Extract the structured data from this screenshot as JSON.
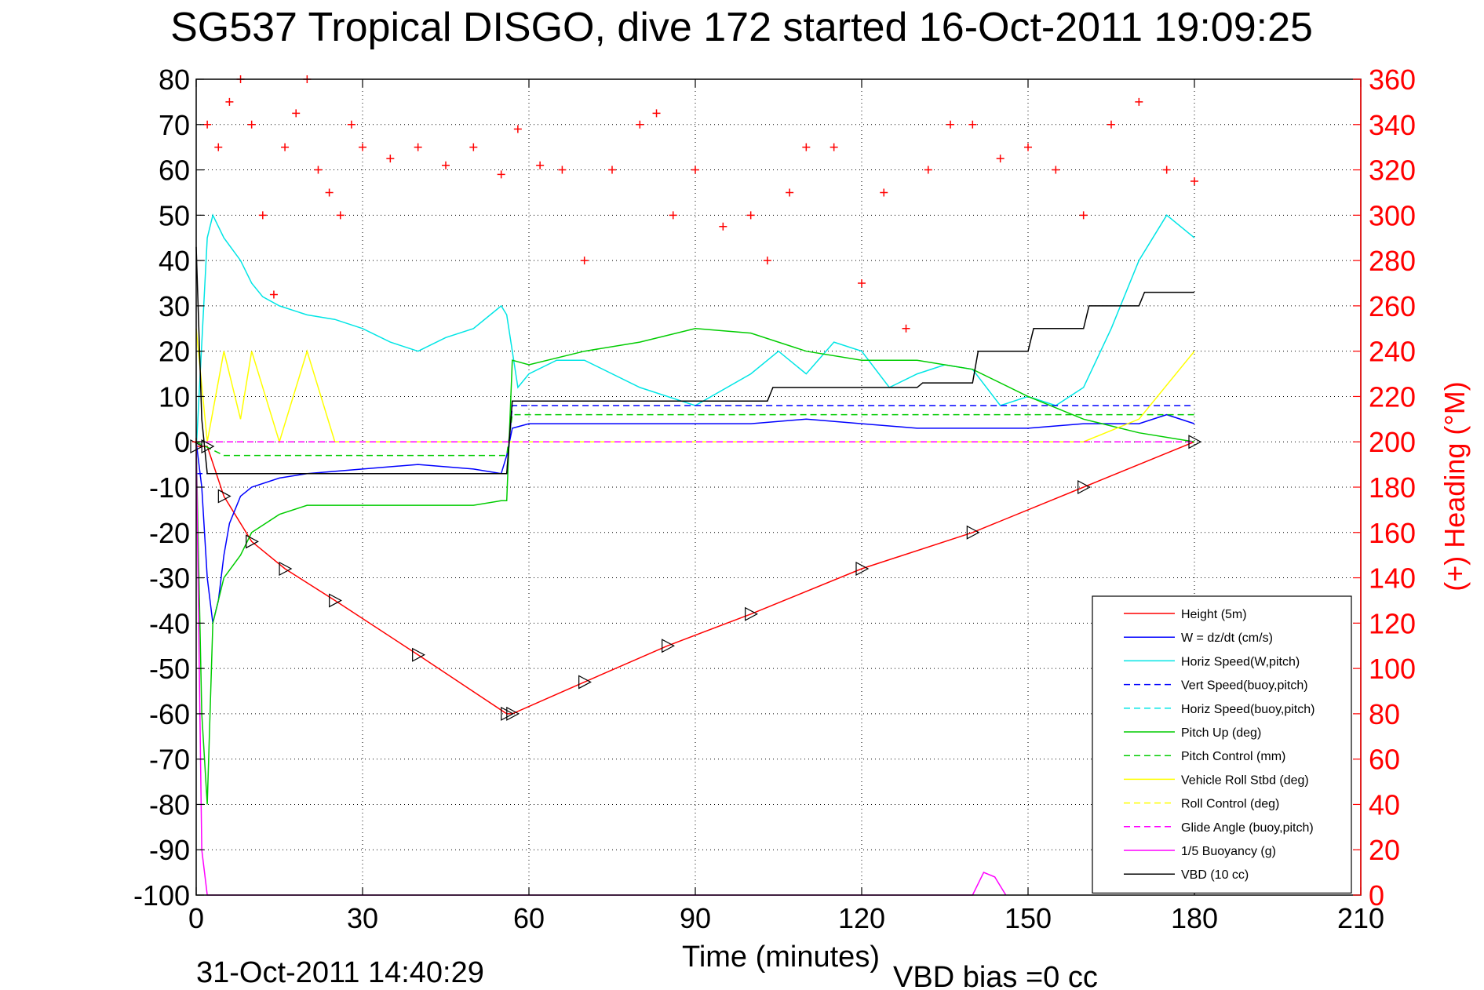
{
  "chart_data": {
    "type": "line",
    "title": "SG537 Tropical DISGO, dive 172 started 16-Oct-2011 19:09:25",
    "xlabel": "Time (minutes)",
    "ylabel": "",
    "y2label": "(+) Heading (°M)",
    "footer_left": "31-Oct-2011 14:40:29",
    "footer_right": "VBD bias =0 cc",
    "xlim": [
      0,
      210
    ],
    "ylim": [
      -100,
      80
    ],
    "y2lim": [
      0,
      360
    ],
    "grid": true,
    "legend_position": "bottom-right",
    "x_ticks": [
      "0",
      "30",
      "60",
      "90",
      "120",
      "150",
      "180",
      "210"
    ],
    "y_ticks": [
      "80",
      "70",
      "60",
      "50",
      "40",
      "30",
      "20",
      "10",
      "0",
      "-10",
      "-20",
      "-30",
      "-40",
      "-50",
      "-60",
      "-70",
      "-80",
      "-90",
      "-100"
    ],
    "y2_ticks": [
      "360",
      "340",
      "320",
      "300",
      "280",
      "260",
      "240",
      "220",
      "200",
      "180",
      "160",
      "140",
      "120",
      "100",
      "80",
      "60",
      "40",
      "20",
      "0"
    ],
    "series": [
      {
        "name": "Height (5m)",
        "color": "#ff0000",
        "style": "solid",
        "x": [
          0,
          2,
          5,
          10,
          16,
          25,
          40,
          56,
          57,
          70,
          85,
          100,
          120,
          140,
          160,
          180
        ],
        "y": [
          -1,
          -1,
          -12,
          -22,
          -28,
          -35,
          -47,
          -60,
          -60,
          -53,
          -45,
          -38,
          -28,
          -20,
          -10,
          0
        ]
      },
      {
        "name": "W = dz/dt (cm/s)",
        "color": "#0000ff",
        "style": "solid",
        "x": [
          0,
          1,
          2,
          3,
          4,
          5,
          6,
          8,
          10,
          15,
          20,
          30,
          40,
          50,
          55,
          56,
          57,
          60,
          70,
          80,
          90,
          100,
          110,
          120,
          130,
          140,
          150,
          160,
          170,
          175,
          180
        ],
        "y": [
          0,
          -10,
          -30,
          -40,
          -35,
          -25,
          -18,
          -12,
          -10,
          -8,
          -7,
          -6,
          -5,
          -6,
          -7,
          -3,
          3,
          4,
          4,
          4,
          4,
          4,
          5,
          4,
          3,
          3,
          3,
          4,
          4,
          6,
          4
        ]
      },
      {
        "name": "Horiz Speed(W,pitch)",
        "color": "#00e5e5",
        "style": "solid",
        "x": [
          0,
          2,
          3,
          5,
          8,
          10,
          12,
          15,
          20,
          25,
          30,
          35,
          40,
          45,
          50,
          55,
          56,
          58,
          60,
          65,
          70,
          80,
          90,
          100,
          105,
          110,
          115,
          120,
          125,
          130,
          135,
          140,
          145,
          150,
          155,
          160,
          165,
          170,
          175,
          180
        ],
        "y": [
          -2,
          45,
          50,
          45,
          40,
          35,
          32,
          30,
          28,
          27,
          25,
          22,
          20,
          23,
          25,
          30,
          28,
          12,
          15,
          18,
          18,
          12,
          8,
          15,
          20,
          15,
          22,
          20,
          12,
          15,
          17,
          16,
          8,
          10,
          8,
          12,
          25,
          40,
          50,
          45
        ]
      },
      {
        "name": "Vert Speed(buoy,pitch)",
        "color": "#0000ff",
        "style": "dashed",
        "x": [
          0,
          56,
          57,
          180
        ],
        "y": [
          -7,
          -7,
          8,
          8
        ]
      },
      {
        "name": "Horiz Speed(buoy,pitch)",
        "color": "#00e5e5",
        "style": "dashed",
        "x": [
          0,
          180
        ],
        "y": [
          0,
          0
        ]
      },
      {
        "name": "Pitch Up (deg)",
        "color": "#00cc00",
        "style": "solid",
        "x": [
          0,
          1,
          2,
          3,
          5,
          8,
          10,
          15,
          20,
          30,
          40,
          50,
          55,
          56,
          57,
          60,
          70,
          80,
          90,
          100,
          110,
          120,
          130,
          140,
          150,
          160,
          170,
          180
        ],
        "y": [
          0,
          -60,
          -80,
          -40,
          -30,
          -25,
          -20,
          -16,
          -14,
          -14,
          -14,
          -14,
          -13,
          -13,
          18,
          17,
          20,
          22,
          25,
          24,
          20,
          18,
          18,
          16,
          10,
          5,
          2,
          0
        ]
      },
      {
        "name": "Pitch Control (mm)",
        "color": "#00cc00",
        "style": "dashed",
        "x": [
          0,
          5,
          56,
          57,
          180
        ],
        "y": [
          0,
          -3,
          -3,
          6,
          6
        ]
      },
      {
        "name": "Vehicle Roll Stbd (deg)",
        "color": "#ffff00",
        "style": "solid",
        "x": [
          0,
          2,
          5,
          8,
          10,
          15,
          20,
          25,
          30,
          56,
          60,
          70,
          80,
          90,
          100,
          110,
          120,
          130,
          140,
          150,
          160,
          170,
          180
        ],
        "y": [
          25,
          0,
          20,
          5,
          20,
          0,
          20,
          0,
          0,
          0,
          0,
          0,
          0,
          0,
          0,
          0,
          0,
          0,
          0,
          0,
          0,
          5,
          20
        ]
      },
      {
        "name": "Roll Control (deg)",
        "color": "#ffff00",
        "style": "dashed",
        "x": [
          0,
          180
        ],
        "y": [
          0,
          0
        ]
      },
      {
        "name": "Glide Angle (buoy,pitch)",
        "color": "#ff00ff",
        "style": "dashed",
        "x": [
          0,
          180
        ],
        "y": [
          0,
          0
        ]
      },
      {
        "name": "1/5 Buoyancy (g)",
        "color": "#ff00ff",
        "style": "solid",
        "x": [
          0,
          1,
          2,
          3,
          4,
          140,
          142,
          144,
          146
        ],
        "y": [
          0,
          -90,
          -100,
          -100,
          -100,
          -100,
          -95,
          -96,
          -100
        ]
      },
      {
        "name": "VBD (10 cc)",
        "color": "#000000",
        "style": "solid",
        "x": [
          0,
          1,
          2,
          56,
          57,
          103,
          104,
          130,
          131,
          140,
          141,
          150,
          151,
          160,
          161,
          170,
          171,
          180
        ],
        "y": [
          43,
          5,
          -7,
          -7,
          9,
          9,
          12,
          12,
          13,
          13,
          20,
          20,
          25,
          25,
          30,
          30,
          33,
          33
        ]
      }
    ],
    "heading_series": {
      "name": "(+) Heading (°M)",
      "color": "#ff0000",
      "marker": "+",
      "x": [
        0,
        2,
        4,
        6,
        8,
        10,
        12,
        14,
        16,
        18,
        20,
        22,
        24,
        26,
        28,
        30,
        35,
        40,
        45,
        50,
        55,
        58,
        62,
        66,
        70,
        75,
        80,
        83,
        86,
        90,
        95,
        100,
        103,
        107,
        110,
        115,
        120,
        124,
        128,
        132,
        136,
        140,
        145,
        150,
        155,
        160,
        165,
        170,
        175,
        180
      ],
      "y": [
        200,
        340,
        330,
        350,
        360,
        340,
        300,
        265,
        330,
        345,
        360,
        320,
        310,
        300,
        340,
        330,
        325,
        330,
        322,
        330,
        318,
        338,
        322,
        320,
        280,
        320,
        340,
        345,
        300,
        320,
        295,
        300,
        280,
        310,
        330,
        330,
        270,
        310,
        250,
        320,
        340,
        340,
        325,
        330,
        320,
        300,
        340,
        350,
        320,
        315
      ]
    }
  }
}
